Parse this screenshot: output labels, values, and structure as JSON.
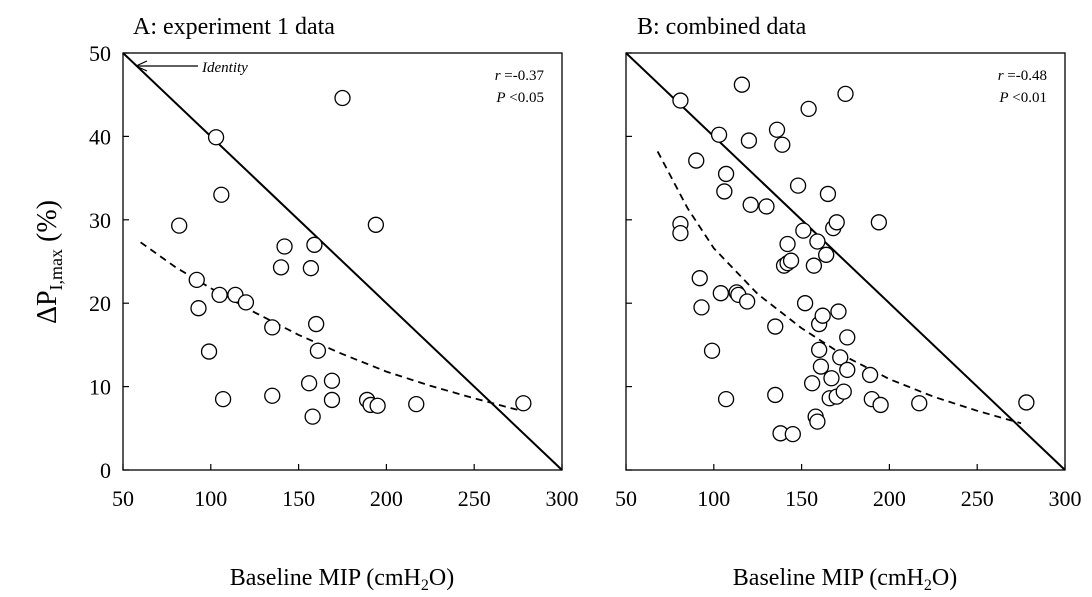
{
  "colors": {
    "ink": "#000000",
    "background": "#ffffff"
  },
  "ylabel": {
    "delta": "ΔP",
    "sub": "I,max",
    "rest": " (%)"
  },
  "chart_data": [
    {
      "type": "scatter",
      "title": "A: experiment 1 data",
      "xlabel": {
        "main": "Baseline MIP (cmH",
        "sub": "2",
        "rest": "O)"
      },
      "xlim": [
        50,
        300
      ],
      "ylim": [
        0,
        50
      ],
      "xticks": [
        50,
        100,
        150,
        200,
        250,
        300
      ],
      "yticks": [
        0,
        10,
        20,
        30,
        40,
        50
      ],
      "grid": false,
      "annotation": "Identity",
      "stats": {
        "r_label": "r",
        "r_value": " =-0.37",
        "p_label": "P",
        "p_value": " <0.05"
      },
      "identity_line": {
        "x1": 50,
        "y1": 50,
        "x2": 300,
        "y2": 0
      },
      "fit_curve": {
        "style": "dashed",
        "points": [
          [
            60,
            27.3
          ],
          [
            80,
            24.3
          ],
          [
            100,
            21.8
          ],
          [
            125,
            18.9
          ],
          [
            150,
            16.2
          ],
          [
            175,
            13.9
          ],
          [
            200,
            11.8
          ],
          [
            225,
            10.1
          ],
          [
            250,
            8.6
          ],
          [
            275,
            7.2
          ]
        ]
      },
      "points": [
        [
          82,
          29.3
        ],
        [
          92,
          22.8
        ],
        [
          93,
          19.4
        ],
        [
          99,
          14.2
        ],
        [
          103,
          39.9
        ],
        [
          105,
          21.0
        ],
        [
          106,
          33.0
        ],
        [
          107,
          8.5
        ],
        [
          114,
          21.0
        ],
        [
          120,
          20.1
        ],
        [
          135,
          17.1
        ],
        [
          135,
          8.9
        ],
        [
          140,
          24.3
        ],
        [
          142,
          26.8
        ],
        [
          156,
          10.4
        ],
        [
          157,
          24.2
        ],
        [
          158,
          6.4
        ],
        [
          159,
          27.0
        ],
        [
          160,
          17.5
        ],
        [
          161,
          14.3
        ],
        [
          169,
          10.7
        ],
        [
          169,
          8.4
        ],
        [
          175,
          44.6
        ],
        [
          189,
          8.4
        ],
        [
          191,
          7.8
        ],
        [
          194,
          29.4
        ],
        [
          195,
          7.7
        ],
        [
          217,
          7.9
        ],
        [
          278,
          8.0
        ]
      ]
    },
    {
      "type": "scatter",
      "title": "B: combined data",
      "xlabel": {
        "main": "Baseline MIP (cmH",
        "sub": "2",
        "rest": "O)"
      },
      "xlim": [
        50,
        300
      ],
      "ylim": [
        0,
        50
      ],
      "xticks": [
        50,
        100,
        150,
        200,
        250,
        300
      ],
      "yticks": [
        0,
        10,
        20,
        30,
        40,
        50
      ],
      "grid": false,
      "stats": {
        "r_label": "r",
        "r_value": " =-0.48",
        "p_label": "P",
        "p_value": " <0.01"
      },
      "identity_line": {
        "x1": 50,
        "y1": 50,
        "x2": 300,
        "y2": 0
      },
      "fit_curve": {
        "style": "dashed",
        "points": [
          [
            68,
            38.2
          ],
          [
            85,
            31.4
          ],
          [
            100,
            26.6
          ],
          [
            125,
            21.1
          ],
          [
            150,
            17.0
          ],
          [
            175,
            13.6
          ],
          [
            200,
            10.9
          ],
          [
            225,
            8.8
          ],
          [
            250,
            7.1
          ],
          [
            275,
            5.6
          ]
        ]
      },
      "points": [
        [
          81,
          44.3
        ],
        [
          81,
          29.5
        ],
        [
          81,
          28.4
        ],
        [
          90,
          37.1
        ],
        [
          92,
          23.0
        ],
        [
          93,
          19.5
        ],
        [
          99,
          14.3
        ],
        [
          103,
          40.2
        ],
        [
          104,
          21.2
        ],
        [
          106,
          33.4
        ],
        [
          107,
          35.5
        ],
        [
          107,
          8.5
        ],
        [
          113,
          21.3
        ],
        [
          114,
          21.0
        ],
        [
          116,
          46.2
        ],
        [
          119,
          20.2
        ],
        [
          120,
          39.5
        ],
        [
          121,
          31.8
        ],
        [
          130,
          31.6
        ],
        [
          135,
          17.2
        ],
        [
          135,
          9.0
        ],
        [
          136,
          40.8
        ],
        [
          138,
          4.4
        ],
        [
          139,
          39.0
        ],
        [
          140,
          24.5
        ],
        [
          142,
          27.1
        ],
        [
          142,
          24.8
        ],
        [
          144,
          25.1
        ],
        [
          145,
          4.3
        ],
        [
          148,
          34.1
        ],
        [
          151,
          28.7
        ],
        [
          152,
          20.0
        ],
        [
          154,
          43.3
        ],
        [
          156,
          10.4
        ],
        [
          157,
          24.5
        ],
        [
          158,
          6.4
        ],
        [
          159,
          5.8
        ],
        [
          159,
          27.4
        ],
        [
          160,
          17.5
        ],
        [
          160,
          14.4
        ],
        [
          161,
          12.4
        ],
        [
          162,
          18.5
        ],
        [
          164,
          25.8
        ],
        [
          165,
          33.1
        ],
        [
          166,
          8.6
        ],
        [
          167,
          11.0
        ],
        [
          168,
          29.0
        ],
        [
          170,
          8.8
        ],
        [
          170,
          29.7
        ],
        [
          171,
          19.0
        ],
        [
          172,
          13.5
        ],
        [
          174,
          9.4
        ],
        [
          175,
          45.1
        ],
        [
          176,
          15.9
        ],
        [
          176,
          12.0
        ],
        [
          189,
          11.4
        ],
        [
          190,
          8.5
        ],
        [
          194,
          29.7
        ],
        [
          195,
          7.8
        ],
        [
          217,
          8.0
        ],
        [
          278,
          8.1
        ]
      ]
    }
  ]
}
